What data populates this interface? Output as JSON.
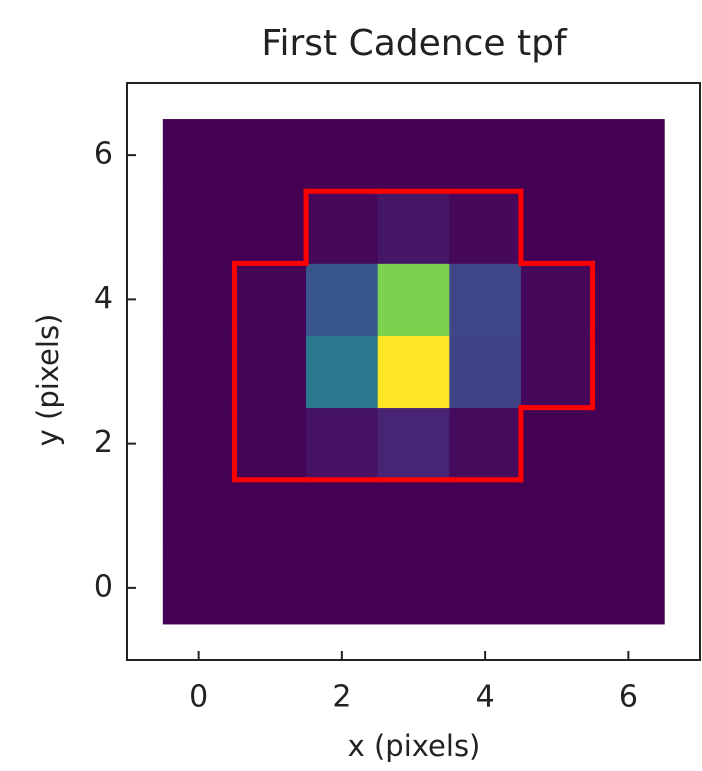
{
  "chart_data": {
    "type": "heatmap",
    "title": "First Cadence tpf",
    "xlabel": "x (pixels)",
    "ylabel": "y (pixels)",
    "x": [
      0,
      1,
      2,
      3,
      4,
      5,
      6
    ],
    "y": [
      0,
      1,
      2,
      3,
      4,
      5,
      6
    ],
    "z": [
      [
        0,
        0,
        0,
        0,
        0,
        0,
        0
      ],
      [
        0,
        0,
        0,
        0,
        0,
        0,
        0
      ],
      [
        0,
        0.01,
        0.05,
        0.1,
        0.03,
        0,
        0
      ],
      [
        0,
        0.01,
        0.4,
        1.0,
        0.2,
        0.02,
        0
      ],
      [
        0,
        0.01,
        0.27,
        0.8,
        0.22,
        0.02,
        0
      ],
      [
        0,
        0,
        0.02,
        0.06,
        0.02,
        0,
        0
      ],
      [
        0,
        0,
        0,
        0,
        0,
        0,
        0
      ]
    ],
    "colormap": "viridis",
    "aperture": [
      [
        0,
        0,
        0,
        0,
        0,
        0,
        0
      ],
      [
        0,
        0,
        0,
        0,
        0,
        0,
        0
      ],
      [
        0,
        1,
        1,
        1,
        1,
        0,
        0
      ],
      [
        0,
        1,
        1,
        1,
        1,
        1,
        0
      ],
      [
        0,
        1,
        1,
        1,
        1,
        1,
        0
      ],
      [
        0,
        0,
        1,
        1,
        1,
        0,
        0
      ],
      [
        0,
        0,
        0,
        0,
        0,
        0,
        0
      ]
    ],
    "aperture_color": "#ff0000",
    "xlim": [
      -1,
      7
    ],
    "ylim": [
      -1,
      7
    ],
    "xticks": [
      0,
      2,
      4,
      6
    ],
    "yticks": [
      0,
      2,
      4,
      6
    ]
  }
}
